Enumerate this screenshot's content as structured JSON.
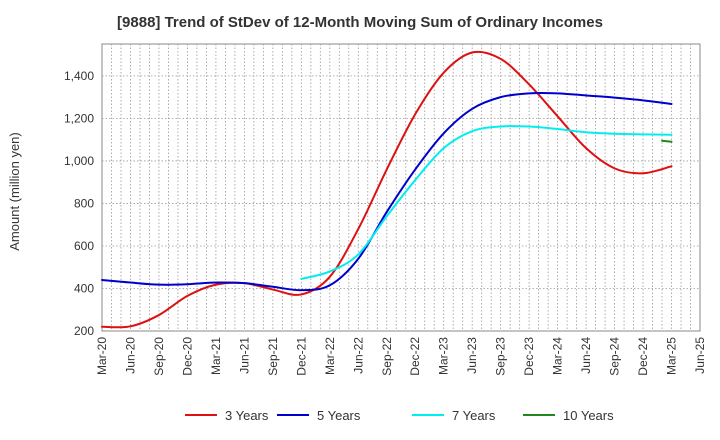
{
  "chart_data": {
    "type": "line",
    "title": "[9888]  Trend of StDev of 12-Month Moving Sum of Ordinary Incomes",
    "xlabel": "",
    "ylabel": "Amount (million yen)",
    "ylim": [
      200,
      1550
    ],
    "yticks": [
      200,
      400,
      600,
      800,
      1000,
      1200,
      1400
    ],
    "ytick_labels": [
      "200",
      "400",
      "600",
      "800",
      "1,000",
      "1,200",
      "1,400"
    ],
    "xticks": [
      "Mar-20",
      "Jun-20",
      "Sep-20",
      "Dec-20",
      "Mar-21",
      "Jun-21",
      "Sep-21",
      "Dec-21",
      "Mar-22",
      "Jun-22",
      "Sep-22",
      "Dec-22",
      "Mar-23",
      "Jun-23",
      "Sep-23",
      "Dec-23",
      "Mar-24",
      "Jun-24",
      "Sep-24",
      "Dec-24",
      "Mar-25",
      "Jun-25"
    ],
    "grid": true,
    "legend_position": "bottom",
    "series": [
      {
        "name": "3 Years",
        "color": "#dd1111",
        "points": [
          [
            "Mar-20",
            220
          ],
          [
            "Jun-20",
            222
          ],
          [
            "Sep-20",
            275
          ],
          [
            "Dec-20",
            365
          ],
          [
            "Mar-21",
            418
          ],
          [
            "Jun-21",
            425
          ],
          [
            "Sep-21",
            395
          ],
          [
            "Dec-21",
            372
          ],
          [
            "Mar-22",
            455
          ],
          [
            "Jun-22",
            680
          ],
          [
            "Sep-22",
            960
          ],
          [
            "Dec-22",
            1220
          ],
          [
            "Mar-23",
            1415
          ],
          [
            "Jun-23",
            1510
          ],
          [
            "Sep-23",
            1480
          ],
          [
            "Dec-23",
            1360
          ],
          [
            "Mar-24",
            1210
          ],
          [
            "Jun-24",
            1060
          ],
          [
            "Sep-24",
            965
          ],
          [
            "Dec-24",
            942
          ],
          [
            "Mar-25",
            975
          ]
        ]
      },
      {
        "name": "5 Years",
        "color": "#0000cc",
        "points": [
          [
            "Mar-20",
            440
          ],
          [
            "Jun-20",
            428
          ],
          [
            "Sep-20",
            418
          ],
          [
            "Dec-20",
            420
          ],
          [
            "Mar-21",
            428
          ],
          [
            "Jun-21",
            425
          ],
          [
            "Sep-21",
            408
          ],
          [
            "Dec-21",
            392
          ],
          [
            "Mar-22",
            415
          ],
          [
            "Jun-22",
            540
          ],
          [
            "Sep-22",
            760
          ],
          [
            "Dec-22",
            960
          ],
          [
            "Mar-23",
            1130
          ],
          [
            "Jun-23",
            1245
          ],
          [
            "Sep-23",
            1300
          ],
          [
            "Dec-23",
            1318
          ],
          [
            "Mar-24",
            1318
          ],
          [
            "Jun-24",
            1308
          ],
          [
            "Sep-24",
            1298
          ],
          [
            "Dec-24",
            1285
          ],
          [
            "Mar-25",
            1268
          ]
        ]
      },
      {
        "name": "7 Years",
        "color": "#00eeee",
        "points": [
          [
            "Dec-21",
            445
          ],
          [
            "Mar-22",
            480
          ],
          [
            "Jun-22",
            560
          ],
          [
            "Sep-22",
            740
          ],
          [
            "Dec-22",
            910
          ],
          [
            "Mar-23",
            1060
          ],
          [
            "Jun-23",
            1140
          ],
          [
            "Sep-23",
            1162
          ],
          [
            "Dec-23",
            1162
          ],
          [
            "Mar-24",
            1150
          ],
          [
            "Jun-24",
            1135
          ],
          [
            "Sep-24",
            1128
          ],
          [
            "Dec-24",
            1125
          ],
          [
            "Mar-25",
            1123
          ]
        ]
      },
      {
        "name": "10 Years",
        "color": "#228822",
        "points": [
          [
            "Feb-25",
            1095
          ],
          [
            "Mar-25",
            1090
          ]
        ]
      }
    ]
  }
}
